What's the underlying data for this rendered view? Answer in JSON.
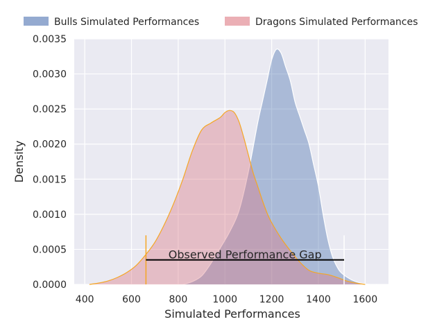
{
  "chart_data": {
    "type": "area",
    "title": "",
    "xlabel": "Simulated Performances",
    "ylabel": "Density",
    "xlim": [
      355,
      1700
    ],
    "ylim": [
      0,
      0.0035
    ],
    "x_ticks": [
      400,
      600,
      800,
      1000,
      1200,
      1400,
      1600
    ],
    "x_tick_labels": [
      "400",
      "600",
      "800",
      "1000",
      "1200",
      "1400",
      "1600"
    ],
    "y_ticks": [
      0,
      0.0005,
      0.001,
      0.0015,
      0.002,
      0.0025,
      0.003,
      0.0035
    ],
    "y_tick_labels": [
      "0.0000",
      "0.0005",
      "0.0010",
      "0.0015",
      "0.0020",
      "0.0025",
      "0.0030",
      "0.0035"
    ],
    "grid": true,
    "legend_position": "top",
    "series": [
      {
        "name": "Bulls Simulated Performances",
        "color": "#4c72b0",
        "edge": "#ffffff",
        "x": [
          820,
          860,
          900,
          940,
          980,
          1020,
          1060,
          1100,
          1140,
          1160,
          1180,
          1200,
          1220,
          1240,
          1260,
          1280,
          1300,
          1320,
          1340,
          1360,
          1380,
          1400,
          1420,
          1440,
          1460,
          1480,
          1500,
          1540,
          1580,
          1620,
          1650
        ],
        "y": [
          0,
          4e-05,
          0.00012,
          0.0003,
          0.00052,
          0.00075,
          0.00105,
          0.0016,
          0.0023,
          0.0026,
          0.0029,
          0.0032,
          0.00335,
          0.0033,
          0.0031,
          0.0029,
          0.0026,
          0.0024,
          0.0022,
          0.002,
          0.0017,
          0.0014,
          0.001,
          0.00065,
          0.0004,
          0.00025,
          0.00016,
          7e-05,
          2e-05,
          0,
          0
        ]
      },
      {
        "name": "Dragons Simulated Performances",
        "color": "#dd7a84",
        "edge": "#f5a623",
        "x": [
          420,
          460,
          500,
          540,
          580,
          620,
          660,
          700,
          740,
          780,
          820,
          860,
          900,
          940,
          980,
          1000,
          1020,
          1040,
          1060,
          1080,
          1100,
          1120,
          1140,
          1160,
          1180,
          1200,
          1240,
          1280,
          1320,
          1360,
          1400,
          1440,
          1480,
          1520,
          1560,
          1600
        ],
        "y": [
          0,
          2e-05,
          5e-05,
          0.0001,
          0.00017,
          0.00027,
          0.00042,
          0.0006,
          0.00085,
          0.00115,
          0.0015,
          0.0019,
          0.0022,
          0.0023,
          0.00238,
          0.00245,
          0.00248,
          0.00245,
          0.00232,
          0.0021,
          0.00185,
          0.0016,
          0.0014,
          0.0012,
          0.00102,
          0.00088,
          0.00066,
          0.00048,
          0.00032,
          0.0002,
          0.00016,
          0.00014,
          0.0001,
          5e-05,
          2e-05,
          0
        ]
      }
    ],
    "annotations": [
      {
        "text": "Observed Performance Gap",
        "x_start": 662,
        "x_end": 1510,
        "y": 0.00035,
        "marker_left": {
          "x": 662,
          "y_top": 0.0007,
          "color": "#f5a623"
        },
        "marker_right": {
          "x": 1510,
          "y_top": 0.0007,
          "color": "#ffffff"
        }
      }
    ]
  }
}
